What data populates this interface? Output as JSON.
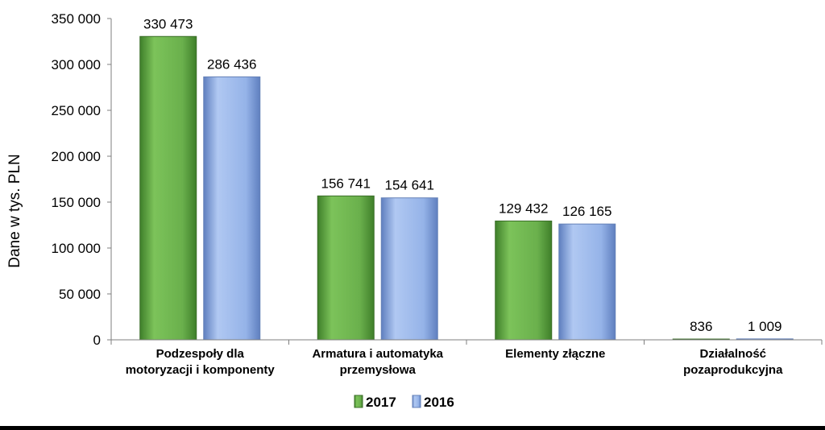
{
  "chart_data": {
    "type": "bar",
    "ylabel": "Dane w tys. PLN",
    "ylim": [
      0,
      350000
    ],
    "yticks": [
      0,
      50000,
      100000,
      150000,
      200000,
      250000,
      300000,
      350000
    ],
    "ytick_labels": [
      "0",
      "50 000",
      "100 000",
      "150 000",
      "200 000",
      "250 000",
      "300 000",
      "350 000"
    ],
    "categories": [
      [
        "Podzespoły dla",
        "motoryzacji i komponenty"
      ],
      [
        "Armatura i automatyka",
        "przemysłowa"
      ],
      [
        "Elementy złączne"
      ],
      [
        "Działalność",
        "pozaprodukcyjna"
      ]
    ],
    "series": [
      {
        "name": "2017",
        "color": "#6ab04c",
        "values": [
          330473,
          156741,
          129432,
          836
        ],
        "labels": [
          "330 473",
          "156 741",
          "129 432",
          "836"
        ]
      },
      {
        "name": "2016",
        "color": "#95b3e8",
        "values": [
          286436,
          154641,
          126165,
          1009
        ],
        "labels": [
          "286 436",
          "154 641",
          "126 165",
          "1 009"
        ]
      }
    ],
    "legend_position": "bottom",
    "grid": false
  }
}
